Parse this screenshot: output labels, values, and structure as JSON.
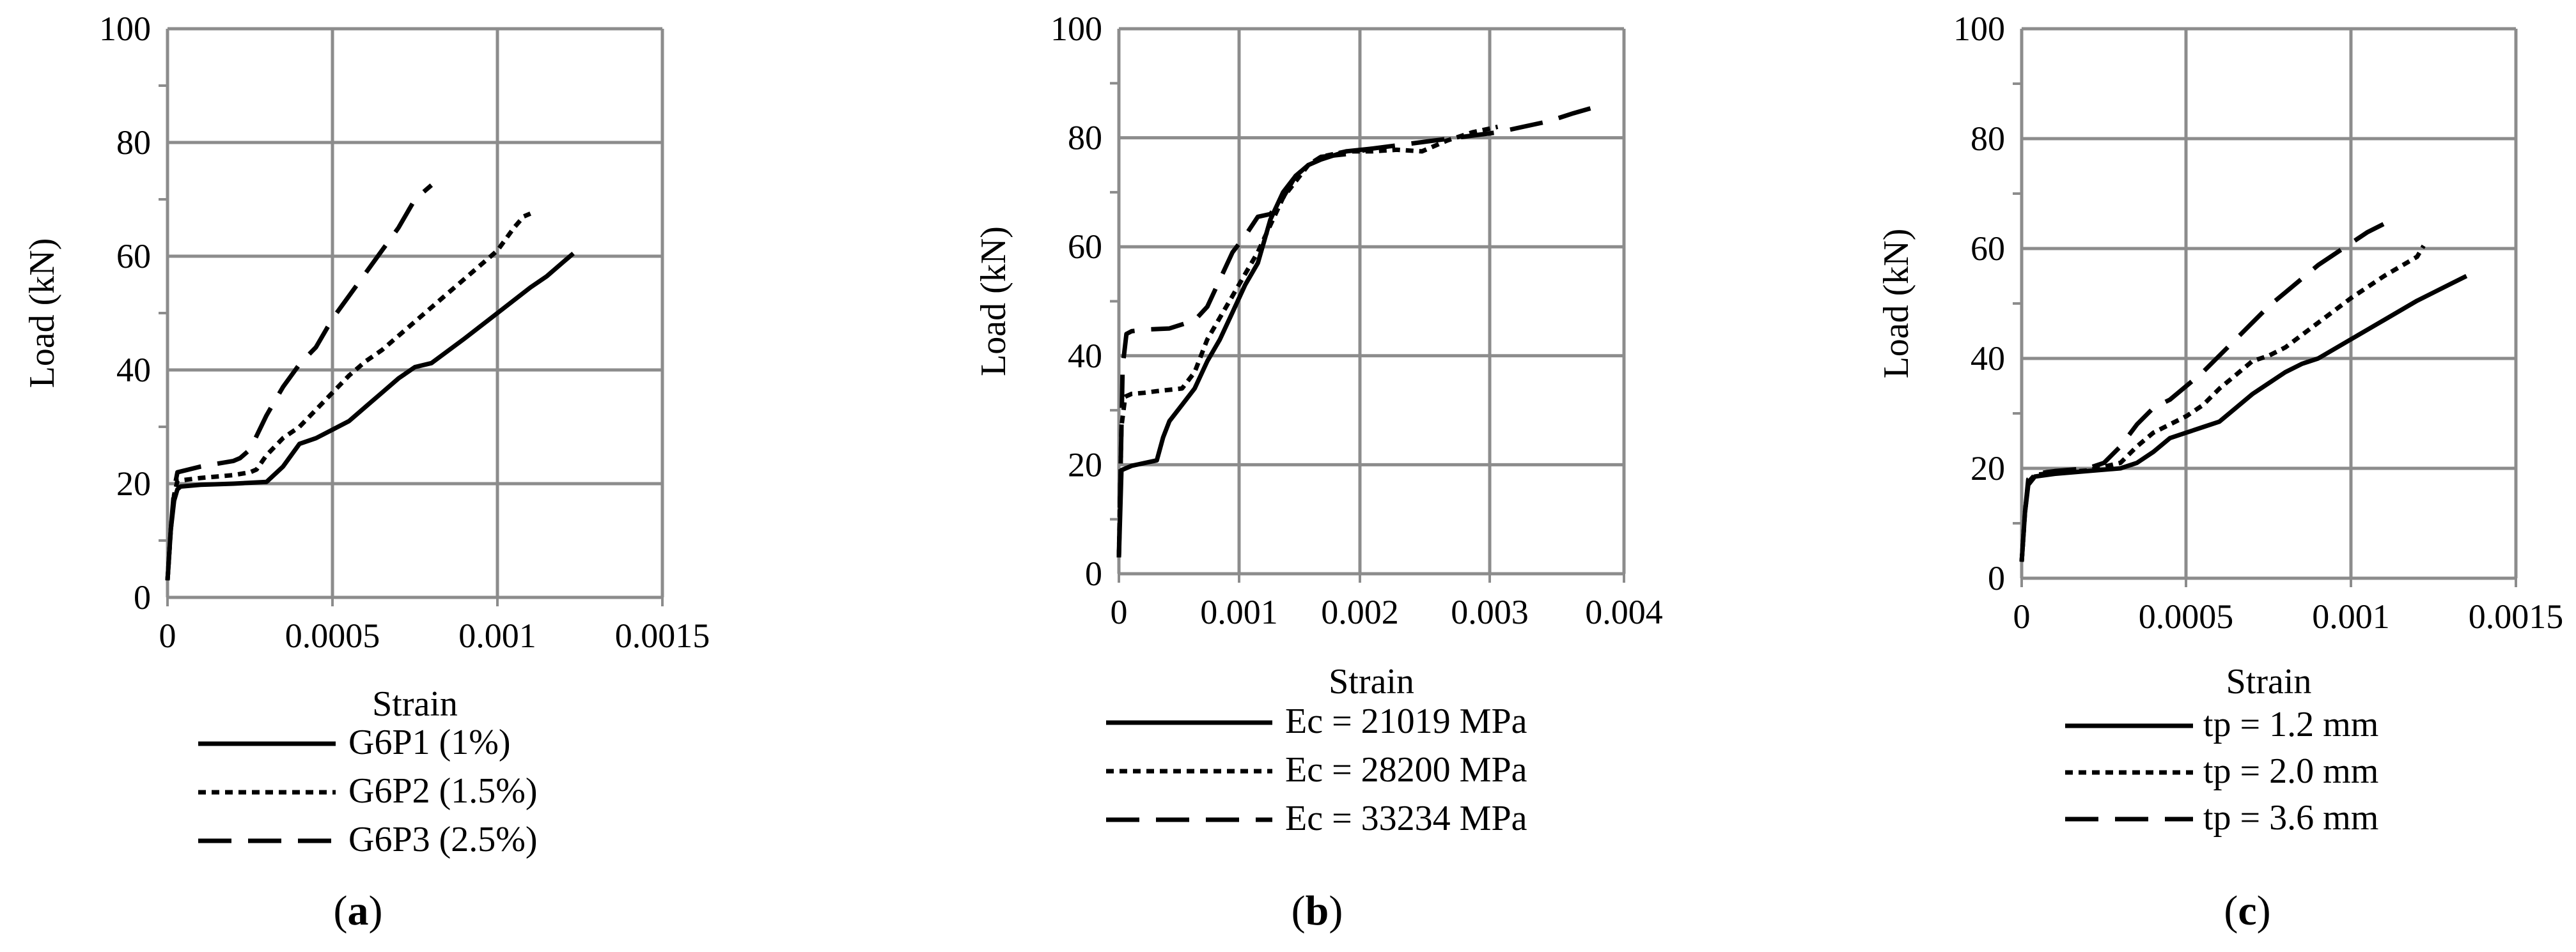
{
  "chart_data": [
    {
      "type": "line",
      "caption_letter": "a",
      "xlabel": "Strain",
      "ylabel": "Load (kN)",
      "xlim": [
        0,
        0.0015
      ],
      "ylim": [
        0,
        100
      ],
      "x_ticks": [
        "0",
        "0.0005",
        "0.001",
        "0.0015"
      ],
      "y_ticks": [
        "0",
        "20",
        "40",
        "60",
        "80",
        "100"
      ],
      "grid": true,
      "legend_position": "bottom",
      "series": [
        {
          "name": "G6P1 (1%)",
          "dash": "solid",
          "points": [
            [
              0.0,
              3
            ],
            [
              1e-05,
              12
            ],
            [
              2e-05,
              17
            ],
            [
              3e-05,
              19
            ],
            [
              4e-05,
              19.5
            ],
            [
              0.0001,
              19.8
            ],
            [
              0.0002,
              20
            ],
            [
              0.0003,
              20.3
            ],
            [
              0.00035,
              23
            ],
            [
              0.0004,
              27
            ],
            [
              0.00045,
              28
            ],
            [
              0.0005,
              29.5
            ],
            [
              0.00055,
              31
            ],
            [
              0.0006,
              33.5
            ],
            [
              0.00065,
              36
            ],
            [
              0.0007,
              38.5
            ],
            [
              0.00075,
              40.5
            ],
            [
              0.0008,
              41.2
            ],
            [
              0.0009,
              45.5
            ],
            [
              0.001,
              50
            ],
            [
              0.0011,
              54.5
            ],
            [
              0.00115,
              56.5
            ],
            [
              0.0012,
              59
            ],
            [
              0.00123,
              60.5
            ]
          ]
        },
        {
          "name": "G6P2 (1.5%)",
          "dash": "dotted",
          "points": [
            [
              0.0,
              3
            ],
            [
              1e-05,
              12
            ],
            [
              2e-05,
              18
            ],
            [
              3e-05,
              20.5
            ],
            [
              0.0001,
              21
            ],
            [
              0.0002,
              21.5
            ],
            [
              0.00025,
              22
            ],
            [
              0.00027,
              22.5
            ],
            [
              0.0003,
              25
            ],
            [
              0.00035,
              28
            ],
            [
              0.0004,
              30
            ],
            [
              0.00045,
              33
            ],
            [
              0.0005,
              36
            ],
            [
              0.00055,
              39
            ],
            [
              0.0006,
              41.5
            ],
            [
              0.00065,
              43.5
            ],
            [
              0.0007,
              46
            ],
            [
              0.0008,
              51
            ],
            [
              0.0009,
              56
            ],
            [
              0.001,
              61
            ],
            [
              0.00105,
              65
            ],
            [
              0.00108,
              67
            ],
            [
              0.0011,
              67.5
            ]
          ]
        },
        {
          "name": "G6P3 (2.5%)",
          "dash": "dashed",
          "points": [
            [
              0.0,
              3
            ],
            [
              1e-05,
              12
            ],
            [
              2e-05,
              19
            ],
            [
              3e-05,
              22
            ],
            [
              0.0001,
              23
            ],
            [
              0.0002,
              24
            ],
            [
              0.00022,
              24.5
            ],
            [
              0.00025,
              26
            ],
            [
              0.0003,
              32
            ],
            [
              0.00035,
              37
            ],
            [
              0.0004,
              41
            ],
            [
              0.00045,
              44
            ],
            [
              0.0005,
              49
            ],
            [
              0.00055,
              53
            ],
            [
              0.0006,
              57
            ],
            [
              0.00065,
              61
            ],
            [
              0.0007,
              65
            ],
            [
              0.00075,
              70
            ],
            [
              0.0008,
              72.5
            ]
          ]
        }
      ]
    },
    {
      "type": "line",
      "caption_letter": "b",
      "xlabel": "Strain",
      "ylabel": "Load (kN)",
      "xlim": [
        0,
        0.004
      ],
      "ylim": [
        0,
        100
      ],
      "x_ticks": [
        "0",
        "0.001",
        "0.002",
        "0.003",
        "0.004"
      ],
      "y_ticks": [
        "0",
        "20",
        "40",
        "60",
        "80",
        "100"
      ],
      "grid": true,
      "legend_position": "bottom",
      "series": [
        {
          "name": "Ec = 21019 MPa",
          "dash": "solid",
          "points": [
            [
              0.0,
              3
            ],
            [
              2e-05,
              19
            ],
            [
              0.0001,
              19.8
            ],
            [
              0.0002,
              20.3
            ],
            [
              0.0003,
              20.8
            ],
            [
              0.00035,
              25
            ],
            [
              0.0004,
              28
            ],
            [
              0.0005,
              31
            ],
            [
              0.0006,
              34
            ],
            [
              0.0007,
              39
            ],
            [
              0.0008,
              43
            ],
            [
              0.0009,
              48
            ],
            [
              0.001,
              53
            ],
            [
              0.0011,
              57
            ],
            [
              0.0012,
              65
            ],
            [
              0.0013,
              70
            ],
            [
              0.0014,
              73
            ],
            [
              0.0015,
              75
            ],
            [
              0.0016,
              76
            ],
            [
              0.0018,
              77.5
            ],
            [
              0.002,
              78
            ]
          ]
        },
        {
          "name": "Ec = 28200 MPa",
          "dash": "dotted",
          "points": [
            [
              0.0,
              3
            ],
            [
              2e-05,
              27
            ],
            [
              5e-05,
              32.5
            ],
            [
              0.0001,
              33
            ],
            [
              0.0002,
              33.2
            ],
            [
              0.0003,
              33.5
            ],
            [
              0.0005,
              34
            ],
            [
              0.0006,
              37
            ],
            [
              0.0007,
              43
            ],
            [
              0.0008,
              47
            ],
            [
              0.0009,
              51
            ],
            [
              0.001,
              55
            ],
            [
              0.0011,
              59
            ],
            [
              0.0012,
              64
            ],
            [
              0.0013,
              69
            ],
            [
              0.0014,
              72
            ],
            [
              0.0015,
              75
            ],
            [
              0.0016,
              76.5
            ],
            [
              0.0018,
              77.5
            ],
            [
              0.002,
              77.5
            ],
            [
              0.0022,
              77.8
            ],
            [
              0.0024,
              77.5
            ],
            [
              0.0026,
              79.5
            ],
            [
              0.0028,
              81
            ],
            [
              0.003,
              82
            ]
          ]
        },
        {
          "name": "Ec = 33234 MPa",
          "dash": "dashed",
          "points": [
            [
              0.0,
              3
            ],
            [
              3e-05,
              38
            ],
            [
              6e-05,
              44
            ],
            [
              0.0001,
              44.5
            ],
            [
              0.0002,
              44.8
            ],
            [
              0.0004,
              45
            ],
            [
              0.0006,
              46.5
            ],
            [
              0.0007,
              49
            ],
            [
              0.0008,
              54
            ],
            [
              0.0009,
              59
            ],
            [
              0.001,
              62
            ],
            [
              0.0011,
              65.5
            ],
            [
              0.0012,
              66
            ],
            [
              0.0013,
              69
            ],
            [
              0.0014,
              73
            ],
            [
              0.0015,
              75
            ],
            [
              0.0016,
              76.5
            ],
            [
              0.0018,
              77
            ],
            [
              0.002,
              78
            ],
            [
              0.0025,
              79.5
            ],
            [
              0.003,
              81
            ],
            [
              0.0032,
              82
            ],
            [
              0.0034,
              83
            ],
            [
              0.0036,
              84.5
            ],
            [
              0.00375,
              85.5
            ]
          ]
        }
      ]
    },
    {
      "type": "line",
      "caption_letter": "c",
      "xlabel": "Strain",
      "ylabel": "Load (kN)",
      "xlim": [
        0,
        0.0015
      ],
      "ylim": [
        0,
        100
      ],
      "x_ticks": [
        "0",
        "0.0005",
        "0.001",
        "0.0015"
      ],
      "y_ticks": [
        "0",
        "20",
        "40",
        "60",
        "80",
        "100"
      ],
      "grid": true,
      "legend_position": "bottom",
      "series": [
        {
          "name": "tp = 1.2 mm",
          "dash": "solid",
          "points": [
            [
              0.0,
              3
            ],
            [
              1e-05,
              12
            ],
            [
              2e-05,
              17
            ],
            [
              4e-05,
              18.5
            ],
            [
              0.0001,
              19
            ],
            [
              0.0002,
              19.5
            ],
            [
              0.0003,
              20
            ],
            [
              0.00035,
              21
            ],
            [
              0.0004,
              23
            ],
            [
              0.00045,
              25.5
            ],
            [
              0.0005,
              26.5
            ],
            [
              0.00055,
              27.5
            ],
            [
              0.0006,
              28.5
            ],
            [
              0.00065,
              31
            ],
            [
              0.0007,
              33.5
            ],
            [
              0.00075,
              35.5
            ],
            [
              0.0008,
              37.5
            ],
            [
              0.00085,
              39
            ],
            [
              0.0009,
              40
            ],
            [
              0.001,
              43.5
            ],
            [
              0.0011,
              47
            ],
            [
              0.0012,
              50.5
            ],
            [
              0.0013,
              53.5
            ],
            [
              0.00135,
              55
            ]
          ]
        },
        {
          "name": "tp = 2.0 mm",
          "dash": "dotted",
          "points": [
            [
              0.0,
              3
            ],
            [
              1e-05,
              12
            ],
            [
              2e-05,
              17.5
            ],
            [
              4e-05,
              18.8
            ],
            [
              0.0001,
              19.2
            ],
            [
              0.0002,
              19.6
            ],
            [
              0.0003,
              21
            ],
            [
              0.00035,
              24
            ],
            [
              0.0004,
              26.5
            ],
            [
              0.00045,
              28
            ],
            [
              0.0005,
              29.5
            ],
            [
              0.00055,
              31.5
            ],
            [
              0.0006,
              34.5
            ],
            [
              0.00065,
              37
            ],
            [
              0.0007,
              39.5
            ],
            [
              0.00075,
              40.5
            ],
            [
              0.0008,
              42
            ],
            [
              0.0009,
              46.5
            ],
            [
              0.001,
              51
            ],
            [
              0.0011,
              55
            ],
            [
              0.0012,
              58.5
            ],
            [
              0.00122,
              60.5
            ]
          ]
        },
        {
          "name": "tp = 3.6 mm",
          "dash": "dashed",
          "points": [
            [
              0.0,
              3
            ],
            [
              1e-05,
              12
            ],
            [
              2e-05,
              18
            ],
            [
              4e-05,
              19
            ],
            [
              0.0001,
              19.5
            ],
            [
              0.0002,
              20
            ],
            [
              0.00025,
              21
            ],
            [
              0.0003,
              24
            ],
            [
              0.00035,
              28
            ],
            [
              0.0004,
              31
            ],
            [
              0.00045,
              32.5
            ],
            [
              0.0005,
              35
            ],
            [
              0.00055,
              37.5
            ],
            [
              0.0006,
              40.5
            ],
            [
              0.00065,
              43.5
            ],
            [
              0.0007,
              46.5
            ],
            [
              0.00075,
              49.5
            ],
            [
              0.0008,
              52
            ],
            [
              0.0009,
              57
            ],
            [
              0.001,
              61
            ],
            [
              0.00105,
              63
            ],
            [
              0.0011,
              64.5
            ]
          ]
        }
      ]
    }
  ]
}
